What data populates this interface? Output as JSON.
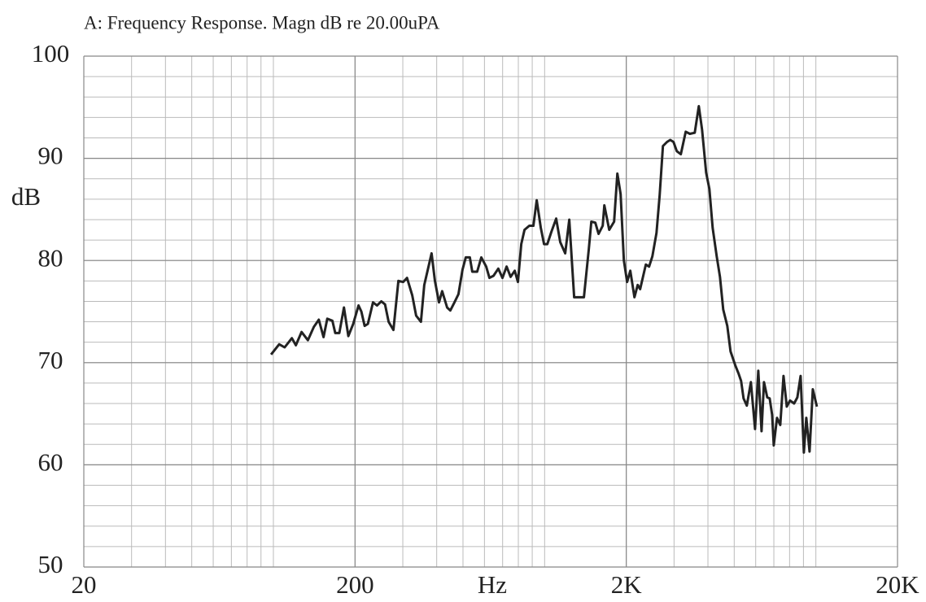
{
  "chart_data": {
    "type": "line",
    "title": "A: Frequency Response. Magn dB re 20.00uPA",
    "xlabel": "Hz",
    "ylabel": "dB",
    "xscale": "log",
    "grid": true,
    "minor_grid": true,
    "xlim": [
      20,
      20000
    ],
    "xticks": [
      20,
      200,
      {
        "value": 2000,
        "label": "2K"
      },
      {
        "value": 20000,
        "label": "20K"
      }
    ],
    "ylim": [
      50,
      100
    ],
    "yticks": [
      50,
      60,
      70,
      80,
      90,
      100
    ],
    "x": [
      98,
      105,
      110,
      117,
      121,
      127,
      134,
      141,
      147,
      153,
      158,
      165,
      169,
      175,
      182,
      189,
      197,
      206,
      211,
      217,
      223,
      233,
      241,
      250,
      258,
      266,
      277,
      289,
      301,
      311,
      325,
      336,
      350,
      360,
      383,
      394,
      408,
      419,
      437,
      449,
      465,
      481,
      498,
      512,
      530,
      541,
      564,
      584,
      609,
      626,
      648,
      675,
      699,
      724,
      749,
      776,
      797,
      820,
      843,
      878,
      909,
      935,
      968,
      995,
      1023,
      1059,
      1103,
      1142,
      1191,
      1233,
      1285,
      1349,
      1396,
      1455,
      1486,
      1538,
      1581,
      1637,
      1660,
      1730,
      1803,
      1854,
      1906,
      1959,
      2014,
      2070,
      2143,
      2203,
      2250,
      2362,
      2428,
      2496,
      2584,
      2656,
      2730,
      2826,
      2905,
      2987,
      3070,
      3178,
      3313,
      3430,
      3576,
      3702,
      3806,
      3940,
      4051,
      4164,
      4310,
      4431,
      4555,
      4715,
      4847,
      5052,
      5194,
      5302,
      5413,
      5565,
      5762,
      5965,
      6132,
      6304,
      6436,
      6616,
      6755,
      6897,
      6993,
      7188,
      7390,
      7597,
      7810,
      8029,
      8310,
      8543,
      8782,
      9030,
      9220,
      9479,
      9745,
      10088
    ],
    "series": [
      {
        "color": "#222222",
        "values": [
          70.8,
          71.8,
          71.5,
          72.4,
          71.7,
          73.0,
          72.2,
          73.5,
          74.2,
          72.5,
          74.3,
          74.1,
          72.9,
          72.9,
          75.4,
          72.6,
          73.8,
          75.6,
          75.0,
          73.6,
          73.8,
          75.9,
          75.6,
          76.0,
          75.7,
          74.0,
          73.2,
          78.0,
          77.9,
          78.3,
          76.6,
          74.6,
          74.0,
          77.6,
          80.7,
          78.0,
          75.9,
          77.0,
          75.4,
          75.1,
          75.9,
          76.7,
          79.1,
          80.3,
          80.3,
          78.9,
          78.9,
          80.3,
          79.4,
          78.3,
          78.5,
          79.2,
          78.3,
          79.4,
          78.4,
          79.0,
          77.9,
          81.6,
          83.0,
          83.4,
          83.4,
          85.9,
          83.2,
          81.6,
          81.6,
          82.8,
          84.1,
          81.8,
          80.7,
          84.0,
          76.4,
          76.4,
          76.4,
          81.1,
          83.8,
          83.7,
          82.6,
          83.4,
          85.4,
          83.0,
          83.8,
          88.5,
          86.5,
          80.0,
          77.9,
          79.0,
          76.4,
          77.6,
          77.2,
          79.6,
          79.4,
          80.4,
          82.7,
          86.4,
          91.2,
          91.6,
          91.8,
          91.6,
          90.7,
          90.4,
          92.6,
          92.4,
          92.5,
          95.1,
          92.8,
          88.6,
          87.0,
          83.2,
          80.4,
          78.4,
          75.2,
          73.6,
          71.1,
          69.7,
          68.9,
          68.2,
          66.5,
          65.8,
          68.1,
          63.5,
          69.2,
          63.3,
          68.1,
          66.6,
          66.5,
          64.9,
          61.9,
          64.6,
          63.9,
          68.7,
          65.7,
          66.3,
          66.0,
          66.6,
          68.7,
          61.2,
          64.6,
          61.3,
          67.4,
          65.7
        ]
      }
    ]
  }
}
